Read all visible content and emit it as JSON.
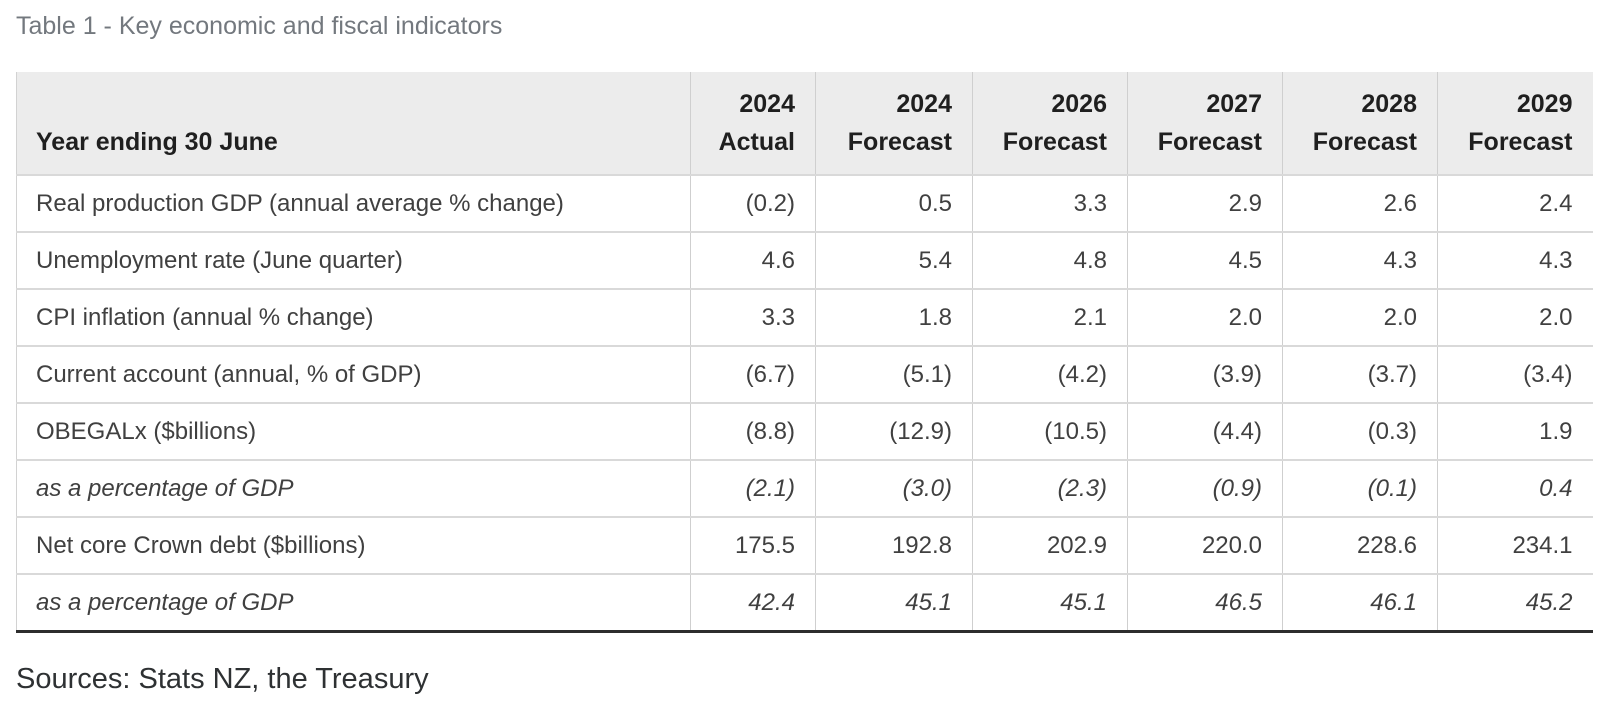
{
  "title": "Table 1 - Key economic and fiscal indicators",
  "sources_line": "Sources: Stats NZ, the Treasury",
  "colors": {
    "title_text": "#73787e",
    "header_bg": "#ececec",
    "header_text": "#1f1f1f",
    "body_text": "#404040",
    "row_divider": "#d9d9d9",
    "column_divider": "#cfcfcf",
    "table_bottom_border": "#2d2d2d"
  },
  "table": {
    "header_label": "Year ending 30 June",
    "columns": [
      {
        "year": "2024",
        "type": "Actual"
      },
      {
        "year": "2024",
        "type": "Forecast"
      },
      {
        "year": "2026",
        "type": "Forecast"
      },
      {
        "year": "2027",
        "type": "Forecast"
      },
      {
        "year": "2028",
        "type": "Forecast"
      },
      {
        "year": "2029",
        "type": "Forecast"
      }
    ],
    "rows": [
      {
        "label": "Real production GDP (annual average % change)",
        "italic": false,
        "values": [
          "(0.2)",
          "0.5",
          "3.3",
          "2.9",
          "2.6",
          "2.4"
        ]
      },
      {
        "label": "Unemployment rate (June quarter)",
        "italic": false,
        "values": [
          "4.6",
          "5.4",
          "4.8",
          "4.5",
          "4.3",
          "4.3"
        ]
      },
      {
        "label": "CPI inflation (annual % change)",
        "italic": false,
        "values": [
          "3.3",
          "1.8",
          "2.1",
          "2.0",
          "2.0",
          "2.0"
        ]
      },
      {
        "label": "Current account (annual, % of GDP)",
        "italic": false,
        "values": [
          "(6.7)",
          "(5.1)",
          "(4.2)",
          "(3.9)",
          "(3.7)",
          "(3.4)"
        ]
      },
      {
        "label": "OBEGALx ($billions)",
        "italic": false,
        "values": [
          "(8.8)",
          "(12.9)",
          "(10.5)",
          "(4.4)",
          "(0.3)",
          "1.9"
        ]
      },
      {
        "label": "as a percentage of GDP",
        "italic": true,
        "values": [
          "(2.1)",
          "(3.0)",
          "(2.3)",
          "(0.9)",
          "(0.1)",
          "0.4"
        ]
      },
      {
        "label": "Net core Crown debt ($billions)",
        "italic": false,
        "values": [
          "175.5",
          "192.8",
          "202.9",
          "220.0",
          "228.6",
          "234.1"
        ]
      },
      {
        "label": "as a percentage of GDP",
        "italic": true,
        "values": [
          "42.4",
          "45.1",
          "45.1",
          "46.5",
          "46.1",
          "45.2"
        ]
      }
    ]
  }
}
